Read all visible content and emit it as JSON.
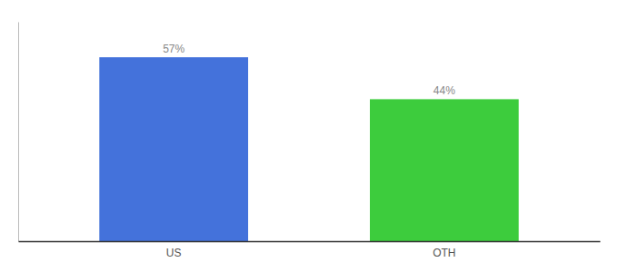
{
  "chart_data": {
    "type": "bar",
    "categories": [
      "US",
      "OTH"
    ],
    "values": [
      57,
      44
    ],
    "colors": [
      "#4472db",
      "#3dcc3d"
    ],
    "data_labels": true,
    "value_labels": [
      "57%",
      "44%"
    ],
    "ylim": [
      0,
      68
    ],
    "tick_labels": "x"
  }
}
